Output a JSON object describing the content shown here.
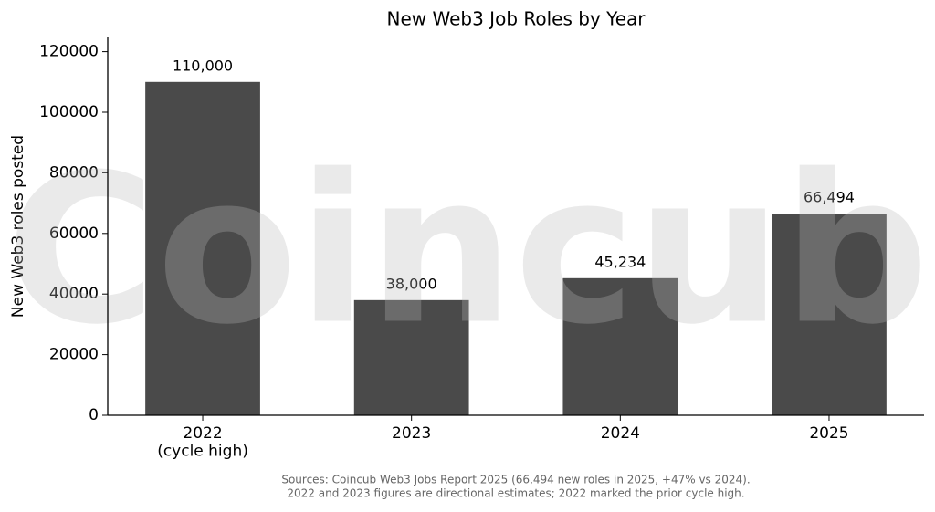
{
  "chart_data": {
    "type": "bar",
    "title": "New Web3 Job Roles by Year",
    "ylabel": "New Web3 roles posted",
    "categories": [
      "2022\n(cycle high)",
      "2023",
      "2024",
      "2025"
    ],
    "values": [
      110000,
      38000,
      45234,
      66494
    ],
    "value_labels": [
      "110,000",
      "38,000",
      "45,234",
      "66,494"
    ],
    "color": "#4a4a4a",
    "ylim": [
      0,
      125000
    ],
    "yticks": [
      0,
      20000,
      40000,
      60000,
      80000,
      100000,
      120000
    ],
    "watermark": "Coincub",
    "footnote": [
      "Sources: Coincub Web3 Jobs Report 2025 (66,494 new roles in 2025, +47% vs 2024).",
      "2022 and 2023 figures are directional estimates; 2022 marked the prior cycle high."
    ]
  }
}
